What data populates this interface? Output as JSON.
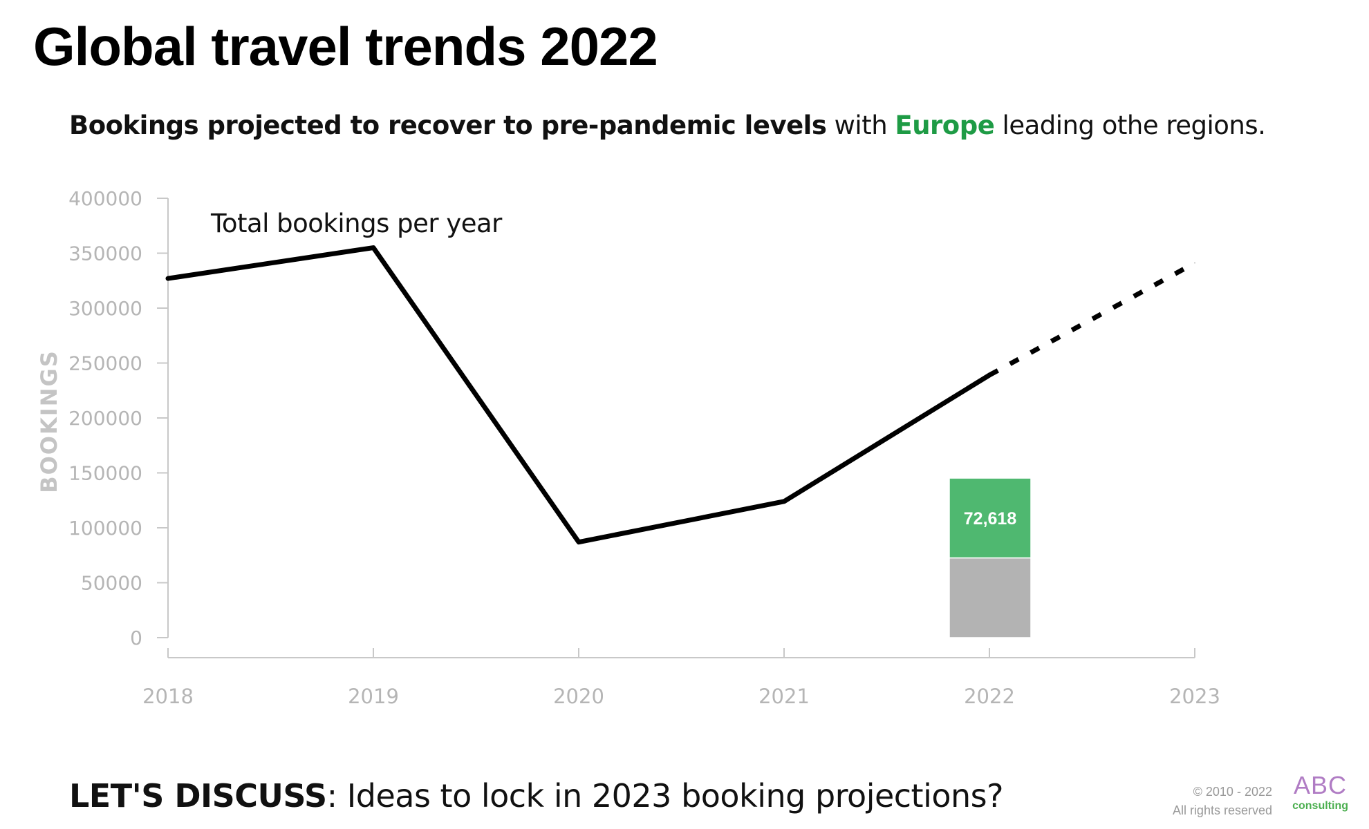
{
  "header": {
    "title": "Global travel trends 2022",
    "subtitle_bold": "Bookings projected to recover to pre-pandemic levels",
    "subtitle_mid": " with ",
    "subtitle_accent": "Europe",
    "subtitle_end": " leading othe regions."
  },
  "chart_data": {
    "type": "line",
    "ylabel": "BOOKINGS",
    "ylim": [
      0,
      400000
    ],
    "yticks": [
      "0",
      "50000",
      "100000",
      "150000",
      "200000",
      "250000",
      "300000",
      "350000",
      "400000"
    ],
    "xticks": [
      "2018",
      "2019",
      "2020",
      "2021",
      "2022",
      "2023"
    ],
    "series": [
      {
        "name": "Total bookings per year",
        "x": [
          2018,
          2019,
          2020,
          2021,
          2022
        ],
        "values": [
          327000,
          355000,
          87000,
          124000,
          239000
        ]
      },
      {
        "name": "",
        "style": "dashed",
        "x": [
          2022,
          2023
        ],
        "values": [
          239000,
          341000
        ]
      }
    ],
    "stacked_bar": {
      "x": 2022,
      "segments": [
        {
          "value": 72618,
          "color": "#b3b3b3",
          "label": ""
        },
        {
          "value": 72618,
          "color": "#4fb870",
          "label": "72,618"
        }
      ]
    },
    "annotation": "Total bookings per year",
    "grid": false
  },
  "footer": {
    "lead_bold": "LET'S DISCUSS",
    "lead_rest": ": Ideas to lock in 2023 booking projections?",
    "copyright_line1": "© 2010 - 2022",
    "copyright_line2": "All rights reserved",
    "logo_main": "ABC",
    "logo_sub": "consulting"
  },
  "colors": {
    "line": "#000000",
    "axis": "#c8c8c8",
    "tick_text": "#b5b5b5",
    "europe": "#1e9b45",
    "bar_green": "#4fb870",
    "bar_grey": "#b3b3b3"
  }
}
